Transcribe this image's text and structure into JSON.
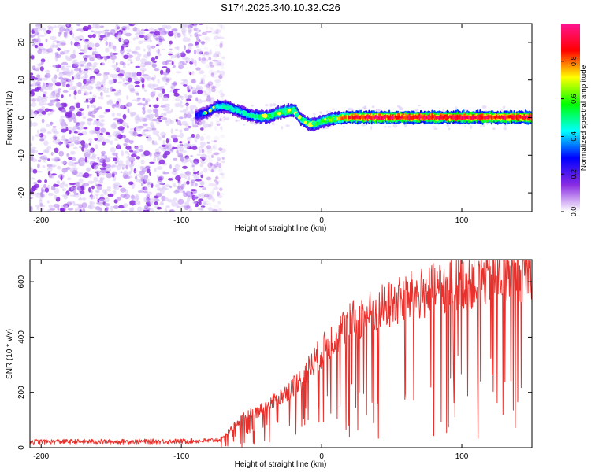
{
  "page_title": "S174.2025.340.10.32.C26",
  "chart_data": [
    {
      "type": "heatmap",
      "name": "spectrogram",
      "xlabel": "Height of straight line (km)",
      "ylabel": "Frequency (Hz)",
      "xlim": [
        -208,
        150
      ],
      "ylim": [
        -25,
        25
      ],
      "xticks": [
        -200,
        -100,
        0,
        100
      ],
      "yticks": [
        -20,
        -10,
        0,
        10,
        20
      ],
      "colorbar": {
        "label": "Normalized spectral amplitude",
        "range": [
          0,
          1
        ],
        "ticks": [
          0.0,
          0.2,
          0.4,
          0.6,
          0.8
        ],
        "tick_labels": [
          "0.0",
          "0.2",
          "0.4",
          "0.6",
          "0.8"
        ],
        "colors": [
          "#ffffff",
          "#8a2be2",
          "#0000ff",
          "#00ffff",
          "#00ff00",
          "#ffff00",
          "#ff0000",
          "#ff1493"
        ]
      },
      "noise_region_x": [
        -208,
        -78
      ],
      "ridge_x": [
        -90,
        -82,
        -75,
        -68,
        -60,
        -52,
        -45,
        -38,
        -32,
        -25,
        -20,
        -15,
        -10,
        -5,
        0,
        5,
        10,
        15,
        20,
        25,
        40,
        60,
        80,
        100,
        120,
        150
      ],
      "ridge_freq": [
        0.5,
        1.5,
        3.0,
        2.8,
        1.8,
        0.6,
        0.2,
        0.3,
        1.2,
        1.8,
        2.0,
        -0.5,
        -1.6,
        -1.7,
        -1.0,
        -0.5,
        -0.2,
        0.0,
        0.1,
        0.1,
        0.1,
        0.1,
        0.1,
        0.1,
        0.1,
        0.1
      ],
      "ridge_amplitude": [
        0.3,
        0.35,
        0.45,
        0.45,
        0.45,
        0.5,
        0.55,
        0.6,
        0.6,
        0.65,
        0.6,
        0.55,
        0.55,
        0.6,
        0.6,
        0.65,
        0.7,
        0.8,
        0.9,
        0.95,
        0.95,
        0.95,
        0.95,
        0.95,
        0.95,
        0.95
      ]
    },
    {
      "type": "line",
      "name": "snr",
      "xlabel": "Height of straight line (km)",
      "ylabel": "SNR (10 * v/v)",
      "xlim": [
        -208,
        150
      ],
      "ylim": [
        0,
        680
      ],
      "xticks": [
        -200,
        -100,
        0,
        100
      ],
      "yticks": [
        0,
        200,
        400,
        600
      ],
      "color": "#e8312c",
      "series": [
        {
          "name": "SNR",
          "x": [
            -208,
            -150,
            -100,
            -80,
            -72,
            -65,
            -55,
            -45,
            -35,
            -25,
            -15,
            -5,
            0,
            10,
            20,
            30,
            40,
            50,
            60,
            70,
            80,
            90,
            100,
            110,
            120,
            130,
            140,
            150
          ],
          "y": [
            22,
            22,
            23,
            25,
            30,
            65,
            110,
            130,
            160,
            195,
            245,
            310,
            340,
            400,
            440,
            470,
            490,
            510,
            530,
            545,
            560,
            575,
            585,
            595,
            605,
            615,
            620,
            625
          ]
        }
      ]
    }
  ]
}
